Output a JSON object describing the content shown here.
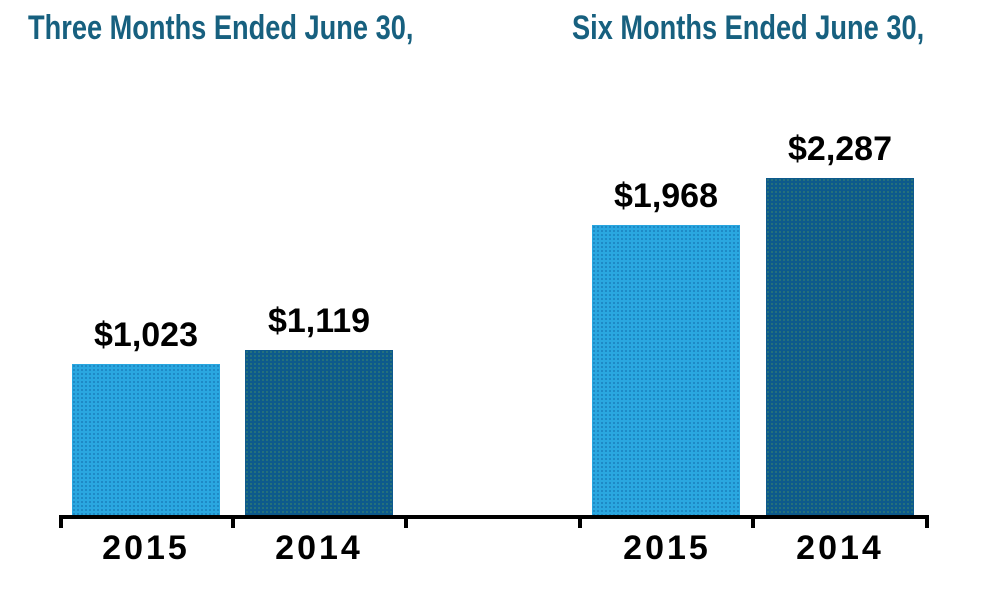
{
  "chart_data": {
    "type": "bar",
    "grid": false,
    "legend": "none",
    "ylim": [
      0,
      2400
    ],
    "groups": [
      {
        "title": "Three Months Ended June 30,",
        "categories": [
          "2015",
          "2014"
        ],
        "bars": [
          {
            "category": "2015",
            "value": 1023,
            "label": "$1,023"
          },
          {
            "category": "2014",
            "value": 1119,
            "label": "$1,119"
          }
        ]
      },
      {
        "title": "Six Months Ended June 30,",
        "categories": [
          "2015",
          "2014"
        ],
        "bars": [
          {
            "category": "2015",
            "value": 1968,
            "label": "$1,968"
          },
          {
            "category": "2014",
            "value": 2287,
            "label": "$2,287"
          }
        ]
      }
    ],
    "colors": {
      "bar_2015": "#2AA7E0",
      "bar_2014": "#0D5A8C",
      "group_title": "#17607F",
      "value_label": "#000000",
      "year_label": "#000000",
      "axis": "#000000",
      "background": "#FFFFFF"
    }
  }
}
